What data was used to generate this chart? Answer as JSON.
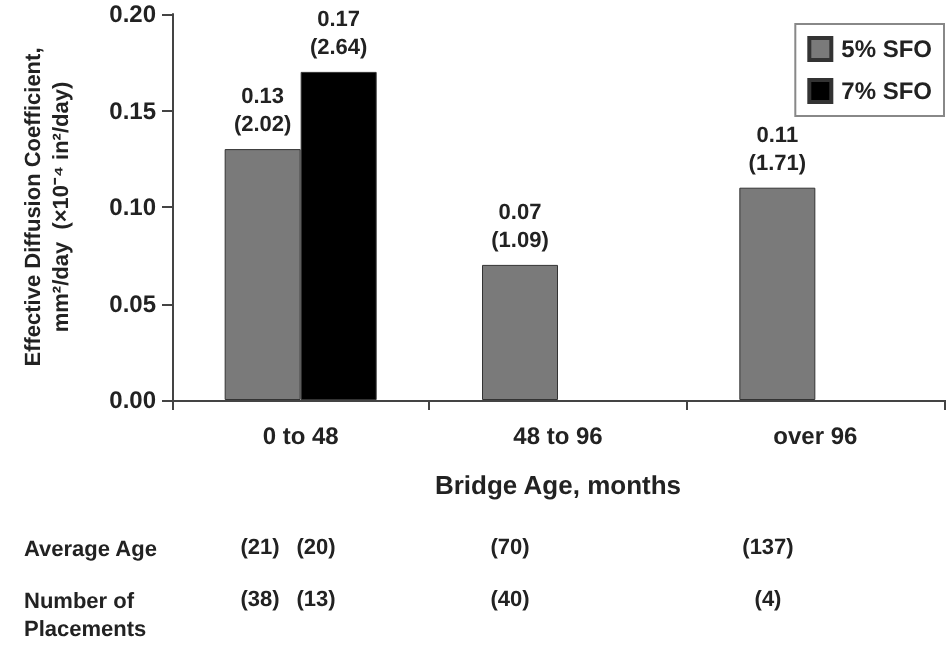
{
  "chart_data": {
    "type": "bar",
    "xlabel": "Bridge Age, months",
    "ylabel": "Effective Diffusion Coefficient,\nmm²/day  (×10⁻⁴ in²/day)",
    "categories": [
      "0 to 48",
      "48 to 96",
      "over 96"
    ],
    "series": [
      {
        "name": "5% SFO",
        "color": "#7a7a7a",
        "values": [
          0.13,
          0.07,
          0.11
        ],
        "value_labels": [
          "0.13\n(2.02)",
          "0.07\n(1.09)",
          "0.11\n(1.71)"
        ]
      },
      {
        "name": "7% SFO",
        "color": "#000000",
        "values": [
          0.17,
          null,
          null
        ],
        "value_labels": [
          "0.17\n(2.64)",
          null,
          null
        ]
      }
    ],
    "ylim": [
      0,
      0.2
    ],
    "yticks": [
      {
        "value": 0,
        "label": "0.00"
      },
      {
        "value": 0.05,
        "label": "0.05"
      },
      {
        "value": 0.1,
        "label": "0.10"
      },
      {
        "value": 0.15,
        "label": "0.15"
      },
      {
        "value": 0.2,
        "label": "0.20"
      }
    ],
    "grid": false,
    "legend": "top right",
    "annotations": [
      "Average Age",
      "(21)",
      "(20)",
      "(70)",
      "(137)",
      "Number of\nPlacements",
      "(38)",
      "(13)",
      "(40)",
      "(4)"
    ]
  }
}
